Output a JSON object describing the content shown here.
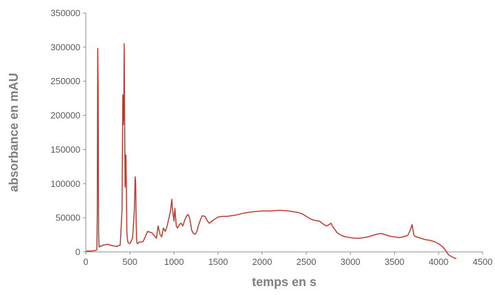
{
  "chart_data": {
    "type": "line",
    "title": "",
    "xlabel": "temps en s",
    "ylabel": "absorbance en mAU",
    "xlim": [
      0,
      4500
    ],
    "ylim": [
      0,
      350000
    ],
    "x_ticks": [
      0,
      500,
      1000,
      1500,
      2000,
      2500,
      3000,
      3500,
      4000,
      4500
    ],
    "y_ticks": [
      0,
      50000,
      100000,
      150000,
      200000,
      250000,
      300000,
      350000
    ],
    "grid": false,
    "legend": "none",
    "series": [
      {
        "color": "#c0392b",
        "x": [
          0,
          80,
          110,
          125,
          130,
          135,
          140,
          145,
          150,
          160,
          200,
          250,
          300,
          350,
          390,
          410,
          420,
          425,
          430,
          435,
          440,
          445,
          450,
          455,
          460,
          465,
          470,
          475,
          480,
          485,
          500,
          530,
          550,
          560,
          565,
          570,
          575,
          580,
          590,
          600,
          650,
          700,
          750,
          800,
          820,
          840,
          860,
          880,
          900,
          920,
          940,
          960,
          975,
          985,
          1000,
          1010,
          1025,
          1040,
          1060,
          1080,
          1100,
          1120,
          1140,
          1160,
          1180,
          1200,
          1220,
          1240,
          1260,
          1280,
          1300,
          1320,
          1350,
          1380,
          1400,
          1450,
          1500,
          1550,
          1600,
          1700,
          1800,
          1900,
          2000,
          2100,
          2200,
          2300,
          2400,
          2450,
          2500,
          2550,
          2600,
          2650,
          2700,
          2730,
          2760,
          2780,
          2800,
          2850,
          2900,
          2950,
          3000,
          3050,
          3100,
          3150,
          3200,
          3250,
          3300,
          3350,
          3400,
          3450,
          3500,
          3550,
          3600,
          3650,
          3680,
          3700,
          3710,
          3720,
          3730,
          3750,
          3800,
          3850,
          3900,
          3950,
          4000,
          4050,
          4080,
          4100,
          4120,
          4150,
          4180,
          4200
        ],
        "y": [
          1000,
          1500,
          2000,
          3000,
          60000,
          298000,
          240000,
          25000,
          7000,
          8000,
          10000,
          11000,
          9000,
          8000,
          10000,
          60000,
          230000,
          186000,
          200000,
          305000,
          200000,
          95000,
          110000,
          142000,
          90000,
          30000,
          20000,
          15000,
          14000,
          13000,
          12000,
          20000,
          60000,
          110000,
          100000,
          50000,
          20000,
          13000,
          12000,
          14000,
          15000,
          30000,
          28000,
          20000,
          38000,
          26000,
          22000,
          35000,
          30000,
          37000,
          48000,
          60000,
          77000,
          60000,
          45000,
          64000,
          38000,
          35000,
          40000,
          42000,
          38000,
          46000,
          52000,
          55000,
          48000,
          32000,
          27000,
          26000,
          30000,
          40000,
          47000,
          53000,
          52000,
          45000,
          42000,
          47000,
          51000,
          52000,
          52000,
          54000,
          57000,
          59000,
          60000,
          60000,
          61000,
          60000,
          58000,
          56000,
          52000,
          48000,
          46000,
          45000,
          40000,
          38000,
          40000,
          42000,
          37000,
          28000,
          24000,
          22000,
          21000,
          20000,
          20000,
          21000,
          22000,
          24000,
          26000,
          27000,
          25000,
          23000,
          22000,
          21000,
          22000,
          24000,
          32000,
          40000,
          32000,
          25000,
          23000,
          22000,
          20000,
          18000,
          17000,
          15000,
          12000,
          7000,
          2000,
          -2000,
          -5000,
          -7000,
          -9000,
          -10000
        ]
      }
    ]
  }
}
